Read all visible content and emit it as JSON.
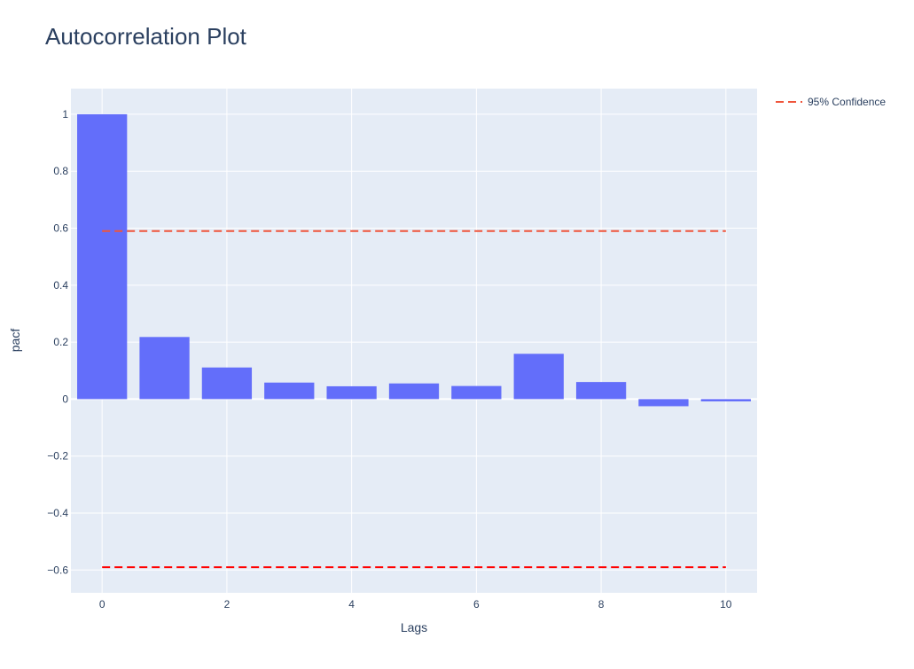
{
  "chart_data": {
    "type": "bar",
    "title": "Autocorrelation Plot",
    "xlabel": "Lags",
    "ylabel": "pacf",
    "xlim": [
      -0.5,
      10.5
    ],
    "ylim": [
      -0.68,
      1.09
    ],
    "x_ticks": [
      0,
      2,
      4,
      6,
      8,
      10
    ],
    "y_ticks": [
      -0.6,
      -0.4,
      -0.2,
      0,
      0.2,
      0.4,
      0.6,
      0.8,
      1
    ],
    "y_tick_labels": [
      "−0.6",
      "−0.4",
      "−0.2",
      "0",
      "0.2",
      "0.4",
      "0.6",
      "0.8",
      "1"
    ],
    "grid": true,
    "legend_position": "top-right",
    "series": [
      {
        "type": "bar",
        "x": [
          0,
          1,
          2,
          3,
          4,
          5,
          6,
          7,
          8,
          9,
          10
        ],
        "values": [
          1.0,
          0.218,
          0.111,
          0.058,
          0.045,
          0.055,
          0.046,
          0.159,
          0.06,
          -0.025,
          -0.008
        ],
        "color": "#636efa"
      },
      {
        "type": "line",
        "name": "95% Confidence",
        "x": [
          0,
          10
        ],
        "values": [
          0.59,
          0.59
        ],
        "color": "#ef553b",
        "dash": "dashed"
      },
      {
        "type": "line",
        "x": [
          0,
          10
        ],
        "values": [
          -0.59,
          -0.59
        ],
        "color": "#ff0000",
        "dash": "dashed"
      }
    ],
    "colors": {
      "plot_background": "#e5ecf6",
      "grid": "#ffffff",
      "text": "#2a3f5f",
      "tick_text": "#2a3f5f"
    }
  }
}
